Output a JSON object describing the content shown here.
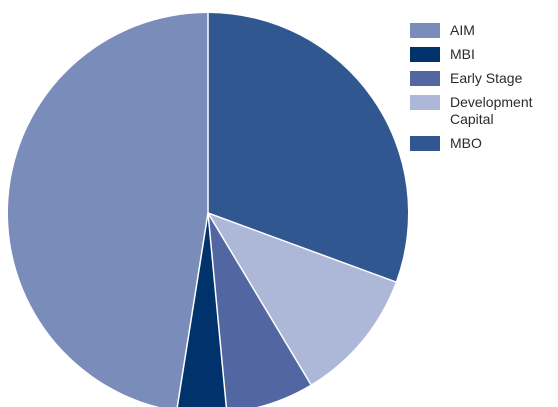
{
  "chart_data": {
    "type": "pie",
    "title": "",
    "series": [
      {
        "label": "MBO",
        "value": 30.6,
        "color": "#315791"
      },
      {
        "label": "Development Capital",
        "value": 10.8,
        "color": "#adb7d8"
      },
      {
        "label": "Early Stage",
        "value": 7.1,
        "color": "#5267a1"
      },
      {
        "label": "MBI",
        "value": 4.0,
        "color": "#00336b"
      },
      {
        "label": "AIM",
        "value": 47.5,
        "color": "#7a8cba"
      }
    ],
    "legend": {
      "placement": "right",
      "items": [
        {
          "label": "AIM",
          "color": "#7a8cba"
        },
        {
          "label": "MBI",
          "color": "#00336b"
        },
        {
          "label": "Early Stage",
          "color": "#5267a1"
        },
        {
          "label": "Development Capital",
          "color": "#adb7d8"
        },
        {
          "label": "MBO",
          "color": "#315791"
        }
      ]
    },
    "start_angle": "12 o'clock",
    "direction": "clockwise"
  }
}
